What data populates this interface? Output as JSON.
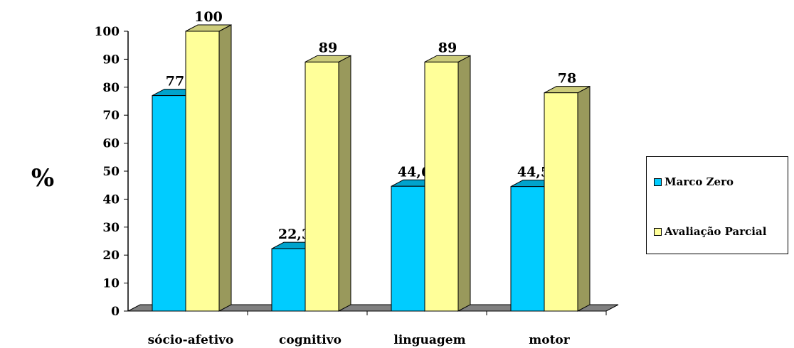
{
  "chart_data": {
    "type": "bar",
    "categories": [
      "sócio-afetivo",
      "cognitivo",
      "linguagem",
      "motor"
    ],
    "series": [
      {
        "name": "Marco Zero",
        "values": [
          77,
          22.3,
          44.6,
          44.5
        ],
        "labels": [
          "77",
          "22,3",
          "44,6",
          "44,5"
        ],
        "color": "#00ccff"
      },
      {
        "name": "Avaliação Parcial",
        "values": [
          100,
          89,
          89,
          78
        ],
        "labels": [
          "100",
          "89",
          "89",
          "78"
        ],
        "color": "#ffff99"
      }
    ],
    "ylabel": "%",
    "ylim": [
      0,
      100
    ],
    "yticks": [
      0,
      10,
      20,
      30,
      40,
      50,
      60,
      70,
      80,
      90,
      100
    ],
    "grid": false,
    "legend_position": "right",
    "style": "3d-column"
  },
  "legend": {
    "items": [
      {
        "label": "Marco Zero",
        "color": "#00ccff"
      },
      {
        "label": "Avaliação Parcial",
        "color": "#ffff99"
      }
    ]
  }
}
